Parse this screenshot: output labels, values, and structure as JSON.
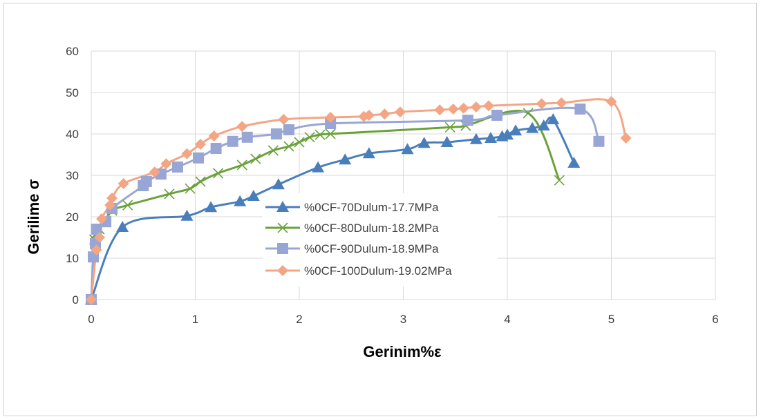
{
  "chart_data": {
    "type": "line",
    "xlabel": "Gerinim%ε",
    "ylabel": "Gerilime σ",
    "xlim": [
      0,
      6
    ],
    "ylim": [
      0,
      60
    ],
    "xticks": [
      0,
      1,
      2,
      3,
      4,
      5,
      6
    ],
    "yticks": [
      0,
      10,
      20,
      30,
      40,
      50,
      60
    ],
    "grid": "vertical and horizontal major gridlines",
    "legend_position": "center",
    "series": [
      {
        "name": "%0CF-70Dulum-17.7MPa",
        "color": "#4a7ebb",
        "marker": "triangle",
        "x": [
          0.0,
          0.3,
          0.92,
          1.15,
          1.43,
          1.56,
          1.8,
          2.18,
          2.44,
          2.67,
          3.04,
          3.2,
          3.42,
          3.7,
          3.84,
          3.95,
          4.0,
          4.08,
          4.24,
          4.35,
          4.44,
          4.64
        ],
        "y": [
          0.0,
          17.5,
          20.2,
          22.3,
          23.7,
          25.0,
          27.8,
          31.9,
          33.8,
          35.3,
          36.3,
          37.8,
          38.0,
          38.7,
          39.0,
          39.4,
          39.8,
          40.8,
          41.4,
          42.0,
          43.5,
          33.0
        ]
      },
      {
        "name": "%0CF-80Dulum-18.2MPa",
        "color": "#6aa23a",
        "marker": "x",
        "x": [
          0.0,
          0.03,
          0.05,
          0.08,
          0.14,
          0.2,
          0.35,
          0.75,
          0.95,
          1.05,
          1.22,
          1.45,
          1.58,
          1.75,
          1.9,
          2.0,
          2.1,
          2.2,
          2.3,
          3.45,
          3.6,
          4.2,
          4.5
        ],
        "y": [
          0.0,
          14.5,
          16.0,
          17.0,
          19.0,
          21.5,
          22.8,
          25.5,
          26.8,
          28.5,
          30.5,
          32.5,
          34.0,
          36.0,
          37.0,
          38.0,
          39.2,
          39.8,
          40.0,
          41.6,
          42.0,
          45.0,
          28.8
        ]
      },
      {
        "name": "%0CF-90Dulum-18.9MPa",
        "color": "#98a6d6",
        "marker": "square",
        "x": [
          0.0,
          0.02,
          0.04,
          0.05,
          0.14,
          0.2,
          0.5,
          0.53,
          0.67,
          0.83,
          1.03,
          1.2,
          1.36,
          1.5,
          1.78,
          1.9,
          2.3,
          3.62,
          3.9,
          4.7,
          4.88
        ],
        "y": [
          0.0,
          10.3,
          13.5,
          17.0,
          18.8,
          22.0,
          27.5,
          28.5,
          30.3,
          32.0,
          34.2,
          36.5,
          38.2,
          39.2,
          40.0,
          41.0,
          42.5,
          43.3,
          44.5,
          46.0,
          38.2
        ]
      },
      {
        "name": "%0CF-100Dulum-19.02MPa",
        "color": "#f4a583",
        "marker": "diamond",
        "x": [
          0.0,
          0.05,
          0.08,
          0.1,
          0.18,
          0.2,
          0.31,
          0.61,
          0.72,
          0.92,
          1.05,
          1.18,
          1.45,
          1.85,
          2.3,
          2.62,
          2.67,
          2.82,
          2.97,
          3.35,
          3.48,
          3.58,
          3.7,
          3.82,
          4.33,
          4.52,
          5.0,
          5.14
        ],
        "y": [
          0.0,
          12.0,
          15.0,
          19.5,
          22.8,
          24.5,
          28.0,
          30.8,
          32.8,
          35.2,
          37.5,
          39.5,
          41.8,
          43.5,
          44.0,
          44.2,
          44.5,
          44.8,
          45.3,
          45.8,
          46.0,
          46.2,
          46.5,
          46.8,
          47.3,
          47.5,
          47.8,
          39.0
        ]
      }
    ]
  }
}
